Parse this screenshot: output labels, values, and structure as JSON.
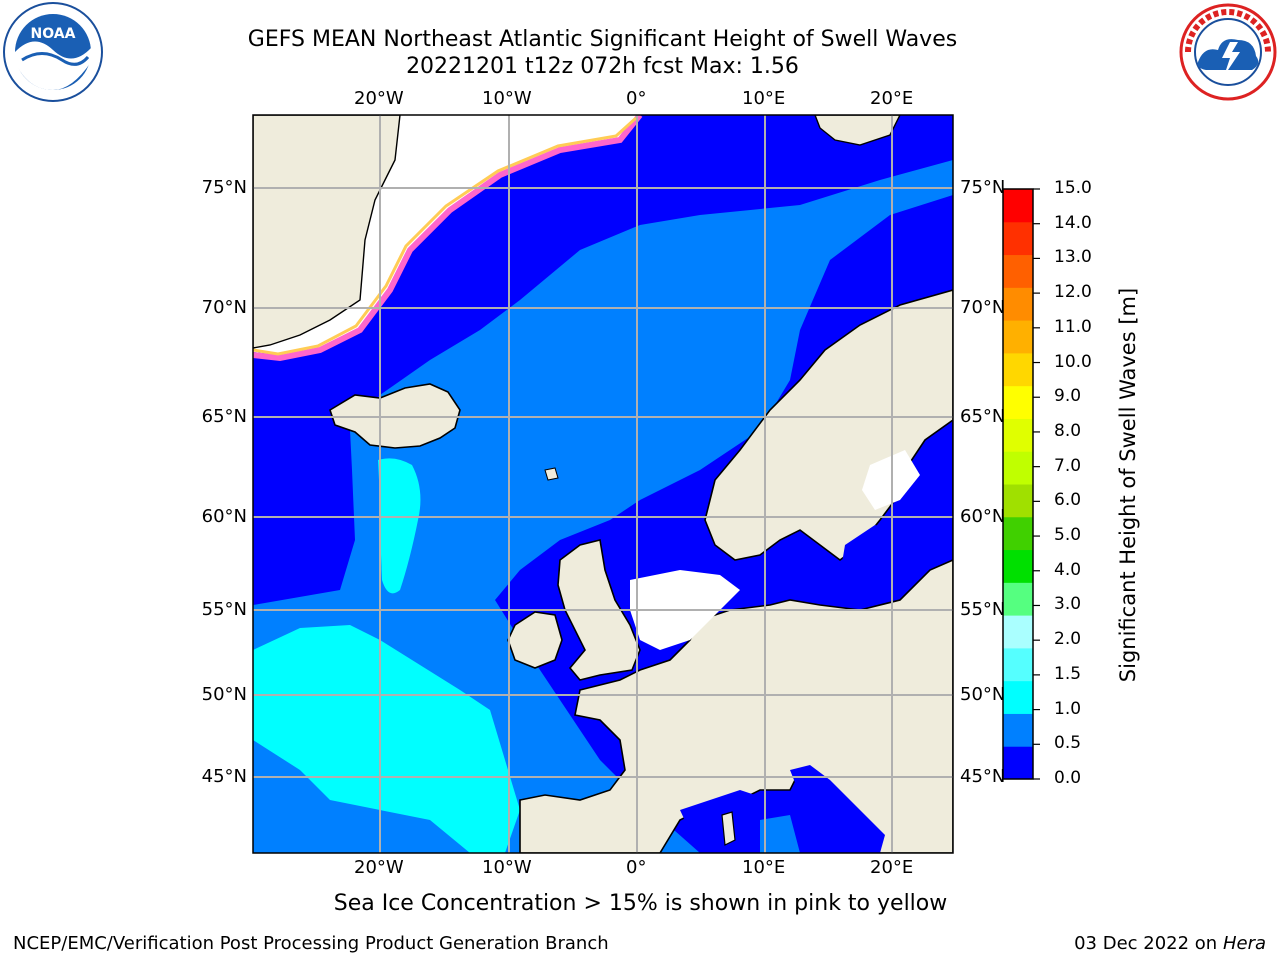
{
  "title_line1": "GEFS MEAN Northeast Atlantic Significant Height of Swell Waves",
  "title_line2": "20221201 t12z 072h fcst   Max: 1.56",
  "map": {
    "lon_labels": [
      "20°W",
      "10°W",
      "0°",
      "10°E",
      "20°E"
    ],
    "lat_labels": [
      "75°N",
      "70°N",
      "65°N",
      "60°N",
      "55°N",
      "50°N",
      "45°N"
    ],
    "colors": {
      "land": "#efecdc",
      "ice_white": "#ffffff",
      "grid": "#b0b0b0"
    }
  },
  "colorbar": {
    "label": "Significant Height of Swell Waves [m]",
    "ticks": [
      "15.0",
      "14.0",
      "13.0",
      "12.0",
      "11.0",
      "10.0",
      "9.0",
      "8.0",
      "7.0",
      "6.0",
      "5.0",
      "4.0",
      "3.0",
      "2.0",
      "1.5",
      "1.0",
      "0.5",
      "0.0"
    ],
    "colors": [
      "#0000ff",
      "#0080ff",
      "#00ffff",
      "#55ffff",
      "#aaffff",
      "#55ff80",
      "#00e000",
      "#40d000",
      "#a0e000",
      "#c0ff00",
      "#e0ff00",
      "#ffff00",
      "#ffd700",
      "#ffb000",
      "#ff8c00",
      "#ff6000",
      "#ff3000",
      "#ff0000"
    ]
  },
  "caption": "Sea Ice Concentration > 15% is shown in pink to yellow",
  "footer_left": "NCEP/EMC/Verification Post Processing Product Generation Branch",
  "footer_date": "03 Dec 2022 on",
  "footer_host": "Hera",
  "logos": {
    "left": "noaa-logo",
    "right": "nws-logo"
  }
}
